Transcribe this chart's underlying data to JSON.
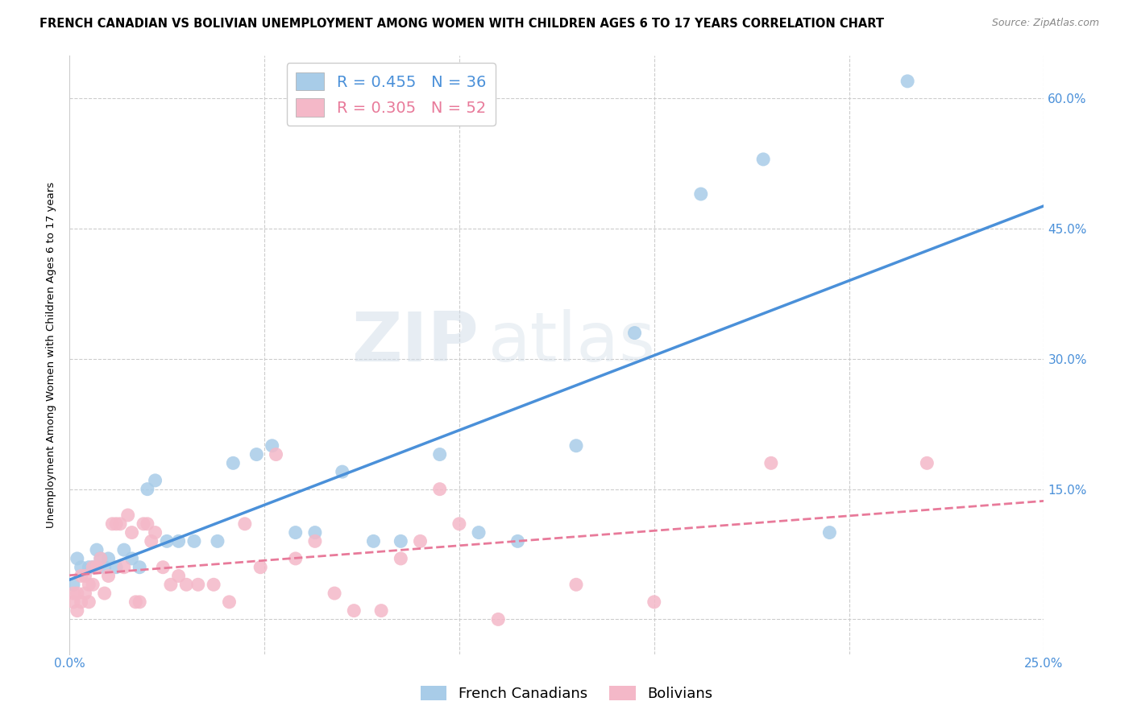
{
  "title": "FRENCH CANADIAN VS BOLIVIAN UNEMPLOYMENT AMONG WOMEN WITH CHILDREN AGES 6 TO 17 YEARS CORRELATION CHART",
  "source": "Source: ZipAtlas.com",
  "ylabel": "Unemployment Among Women with Children Ages 6 to 17 years",
  "ytick_labels": [
    "",
    "15.0%",
    "30.0%",
    "45.0%",
    "60.0%"
  ],
  "ytick_values": [
    0.0,
    0.15,
    0.3,
    0.45,
    0.6
  ],
  "xlim": [
    0.0,
    0.25
  ],
  "ylim": [
    -0.04,
    0.65
  ],
  "french_canadian_R": 0.455,
  "french_canadian_N": 36,
  "bolivian_R": 0.305,
  "bolivian_N": 52,
  "blue_color": "#a8cce8",
  "pink_color": "#f4b8c8",
  "blue_line_color": "#4a90d9",
  "pink_line_color": "#e87a9a",
  "title_fontsize": 10.5,
  "source_fontsize": 9,
  "label_fontsize": 9.5,
  "tick_fontsize": 11,
  "legend_fontsize": 14,
  "watermark_text": "ZIPatlas",
  "french_canadians_x": [
    0.001,
    0.002,
    0.003,
    0.005,
    0.006,
    0.007,
    0.008,
    0.009,
    0.01,
    0.012,
    0.014,
    0.016,
    0.018,
    0.02,
    0.022,
    0.025,
    0.028,
    0.032,
    0.038,
    0.042,
    0.048,
    0.052,
    0.058,
    0.063,
    0.07,
    0.078,
    0.085,
    0.095,
    0.105,
    0.115,
    0.13,
    0.145,
    0.162,
    0.178,
    0.195,
    0.215
  ],
  "french_canadians_y": [
    0.04,
    0.07,
    0.06,
    0.06,
    0.06,
    0.08,
    0.07,
    0.06,
    0.07,
    0.06,
    0.08,
    0.07,
    0.06,
    0.15,
    0.16,
    0.09,
    0.09,
    0.09,
    0.09,
    0.18,
    0.19,
    0.2,
    0.1,
    0.1,
    0.17,
    0.09,
    0.09,
    0.19,
    0.1,
    0.09,
    0.2,
    0.33,
    0.49,
    0.53,
    0.1,
    0.62
  ],
  "bolivians_x": [
    0.001,
    0.001,
    0.002,
    0.002,
    0.003,
    0.003,
    0.004,
    0.004,
    0.005,
    0.005,
    0.006,
    0.006,
    0.007,
    0.008,
    0.009,
    0.01,
    0.011,
    0.012,
    0.013,
    0.014,
    0.015,
    0.016,
    0.017,
    0.018,
    0.019,
    0.02,
    0.021,
    0.022,
    0.024,
    0.026,
    0.028,
    0.03,
    0.033,
    0.037,
    0.041,
    0.045,
    0.049,
    0.053,
    0.058,
    0.063,
    0.068,
    0.073,
    0.08,
    0.085,
    0.09,
    0.095,
    0.1,
    0.11,
    0.13,
    0.15,
    0.18,
    0.22
  ],
  "bolivians_y": [
    0.02,
    0.03,
    0.01,
    0.03,
    0.02,
    0.05,
    0.03,
    0.05,
    0.02,
    0.04,
    0.04,
    0.06,
    0.06,
    0.07,
    0.03,
    0.05,
    0.11,
    0.11,
    0.11,
    0.06,
    0.12,
    0.1,
    0.02,
    0.02,
    0.11,
    0.11,
    0.09,
    0.1,
    0.06,
    0.04,
    0.05,
    0.04,
    0.04,
    0.04,
    0.02,
    0.11,
    0.06,
    0.19,
    0.07,
    0.09,
    0.03,
    0.01,
    0.01,
    0.07,
    0.09,
    0.15,
    0.11,
    0.0,
    0.04,
    0.02,
    0.18,
    0.18
  ]
}
